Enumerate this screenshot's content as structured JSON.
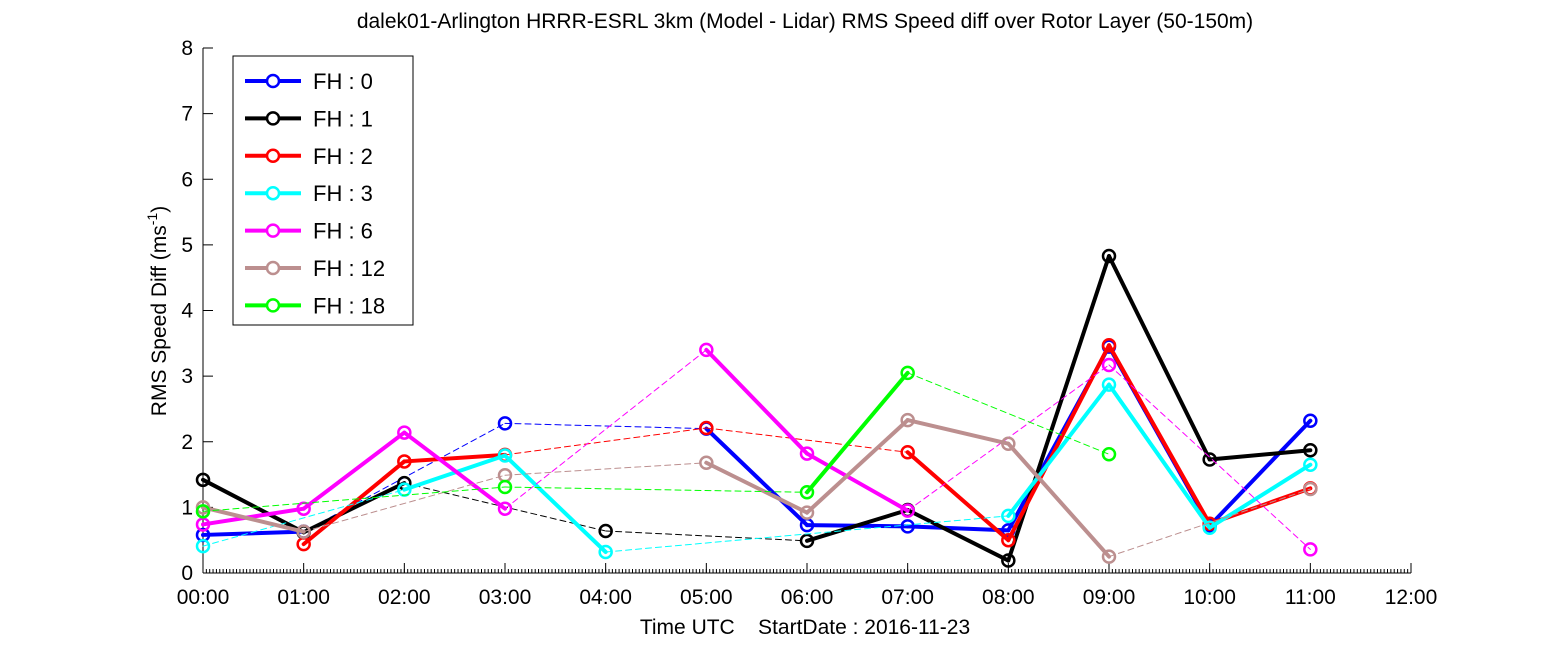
{
  "chart_data": {
    "type": "line",
    "title": "dalek01-Arlington HRRR-ESRL 3km (Model - Lidar) RMS Speed diff over Rotor Layer (50-150m)",
    "xlabel": "Time UTC    StartDate : 2016-11-23",
    "ylabel": "RMS Speed Diff (ms",
    "ylabel_sup": "-1",
    "ylabel_end": ")",
    "xlim": [
      0,
      12
    ],
    "ylim": [
      0,
      8
    ],
    "x_tick_values": [
      0,
      1,
      2,
      3,
      4,
      5,
      6,
      7,
      8,
      9,
      10,
      11,
      12
    ],
    "x_tick_labels": [
      "00:00",
      "01:00",
      "02:00",
      "03:00",
      "04:00",
      "05:00",
      "06:00",
      "07:00",
      "08:00",
      "09:00",
      "10:00",
      "11:00",
      "12:00"
    ],
    "y_tick_values": [
      0,
      1,
      2,
      3,
      4,
      5,
      6,
      7,
      8
    ],
    "y_tick_labels": [
      "0",
      "1",
      "2",
      "3",
      "4",
      "5",
      "6",
      "7",
      "8"
    ],
    "grid": false,
    "legend_position": "top-left",
    "series": [
      {
        "name": "FH : 0",
        "color": "#0000ff",
        "x": [
          0,
          1,
          2,
          3,
          5,
          6,
          7,
          8,
          9,
          10,
          11
        ],
        "y": [
          0.58,
          0.63,
          null,
          2.28,
          2.2,
          0.73,
          0.71,
          0.65,
          3.45,
          0.72,
          2.32
        ]
      },
      {
        "name": "FH : 1",
        "color": "#000000",
        "x": [
          0,
          1,
          2,
          4,
          6,
          7,
          8,
          9,
          10,
          11
        ],
        "y": [
          1.42,
          0.62,
          1.37,
          0.64,
          0.49,
          0.96,
          0.19,
          4.83,
          1.73,
          1.87
        ]
      },
      {
        "name": "FH : 2",
        "color": "#ff0000",
        "x": [
          0,
          1,
          2,
          3,
          5,
          7,
          8,
          9,
          10,
          11
        ],
        "y": [
          null,
          0.44,
          1.7,
          1.8,
          2.21,
          1.84,
          0.5,
          3.47,
          0.75,
          1.29
        ]
      },
      {
        "name": "FH : 3",
        "color": "#00ffff",
        "x": [
          0,
          1,
          2,
          3,
          4,
          6,
          8,
          9,
          10,
          11
        ],
        "y": [
          0.41,
          null,
          1.27,
          1.79,
          0.32,
          null,
          0.87,
          2.87,
          0.69,
          1.65
        ]
      },
      {
        "name": "FH : 6",
        "color": "#ff00ff",
        "x": [
          0,
          1,
          2,
          3,
          5,
          6,
          7,
          9,
          11
        ],
        "y": [
          0.74,
          0.98,
          2.14,
          0.98,
          3.4,
          1.82,
          0.95,
          3.17,
          0.36
        ]
      },
      {
        "name": "FH : 12",
        "color": "#bc8f8f",
        "x": [
          0,
          1,
          3,
          5,
          6,
          7,
          8,
          9,
          11
        ],
        "y": [
          1.0,
          0.63,
          1.49,
          1.68,
          0.92,
          2.33,
          1.97,
          0.25,
          1.28
        ]
      },
      {
        "name": "FH : 18",
        "color": "#00ff00",
        "x": [
          0,
          3,
          6,
          7,
          9
        ],
        "y": [
          0.94,
          1.31,
          1.23,
          3.05,
          1.81
        ]
      }
    ]
  }
}
